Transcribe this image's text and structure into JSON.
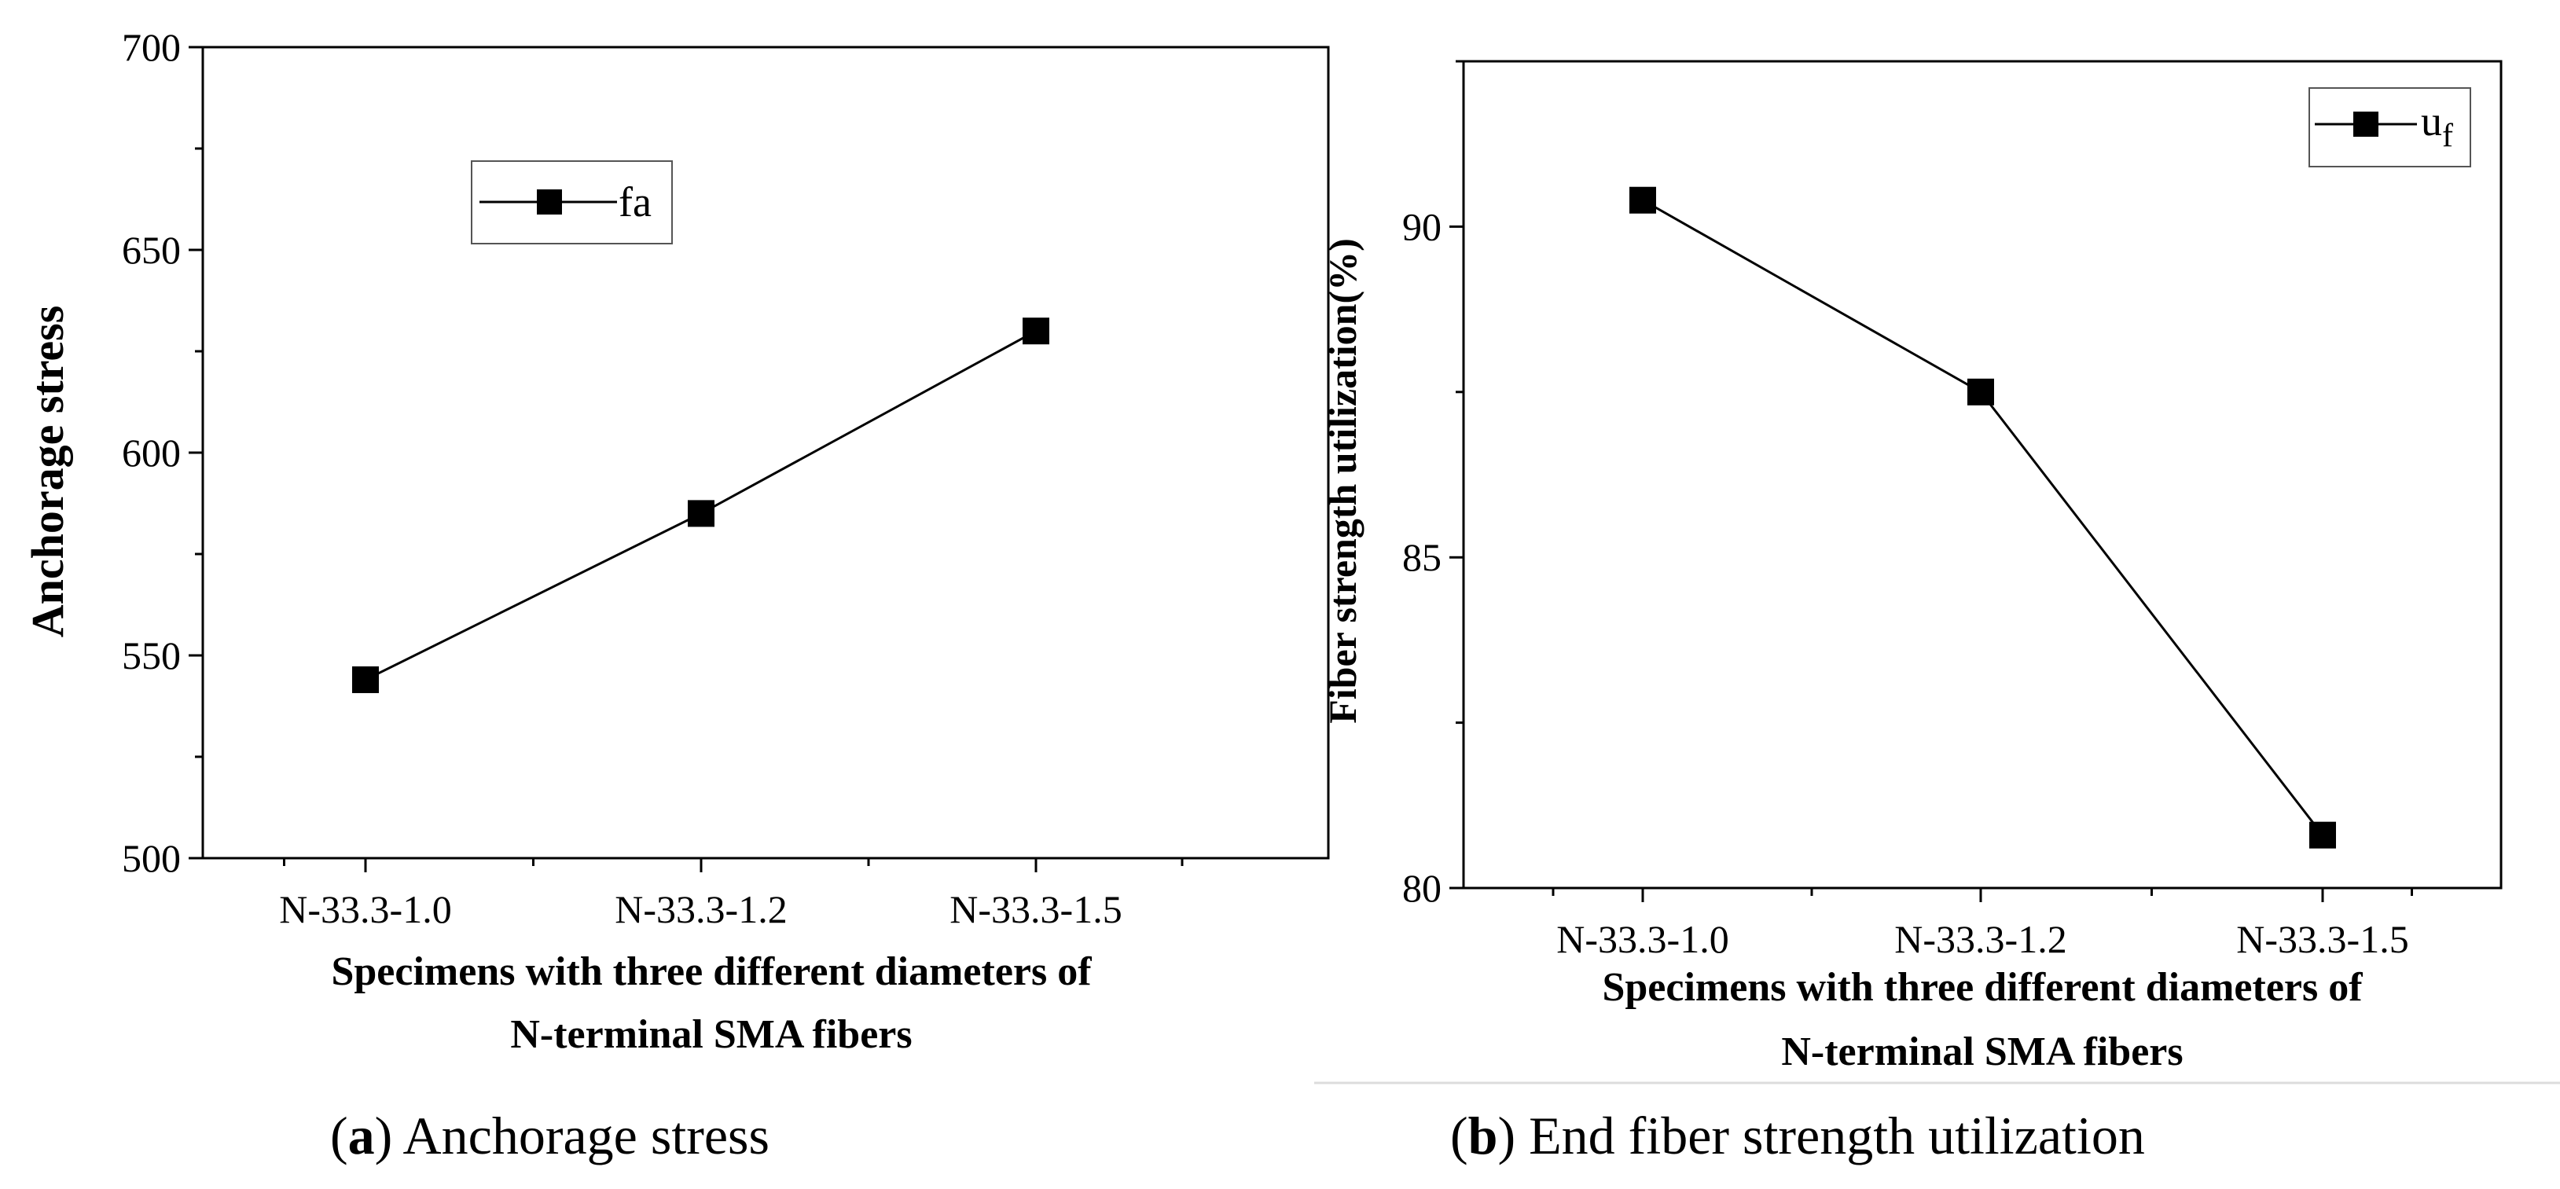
{
  "chart_data": [
    {
      "type": "line",
      "panel": "a",
      "categories": [
        "N-33.3-1.0",
        "N-33.3-1.2",
        "N-33.3-1.5"
      ],
      "series": [
        {
          "name": "fa",
          "values": [
            544,
            585,
            630
          ]
        }
      ],
      "ylim": [
        500,
        700
      ],
      "yticks": [
        500,
        550,
        600,
        650,
        700
      ],
      "ytick_labels": [
        "500",
        "550",
        "600",
        "650",
        "700"
      ],
      "ylabel": "Anchorage stress",
      "xlabel_line1": "Specimens with three different diameters of",
      "xlabel_line2": "N-terminal SMA fibers",
      "legend_label": "fa",
      "caption_letter": "a",
      "caption_text": " Anchorage stress"
    },
    {
      "type": "line",
      "panel": "b",
      "categories": [
        "N-33.3-1.0",
        "N-33.3-1.2",
        "N-33.3-1.5"
      ],
      "series": [
        {
          "name": "uf",
          "values": [
            90.4,
            87.5,
            80.8
          ]
        }
      ],
      "ylim": [
        80,
        92.5
      ],
      "yticks": [
        80,
        85,
        90
      ],
      "ytick_labels": [
        "80",
        "85",
        "90"
      ],
      "ylabel": "Fiber strength utilization(%)",
      "xlabel_line1": "Specimens with three different diameters of",
      "xlabel_line2": "N-terminal SMA fibers",
      "legend_label_main": "u",
      "legend_label_sub": "f",
      "caption_letter": "b",
      "caption_text": " End fiber strength utilization"
    }
  ]
}
